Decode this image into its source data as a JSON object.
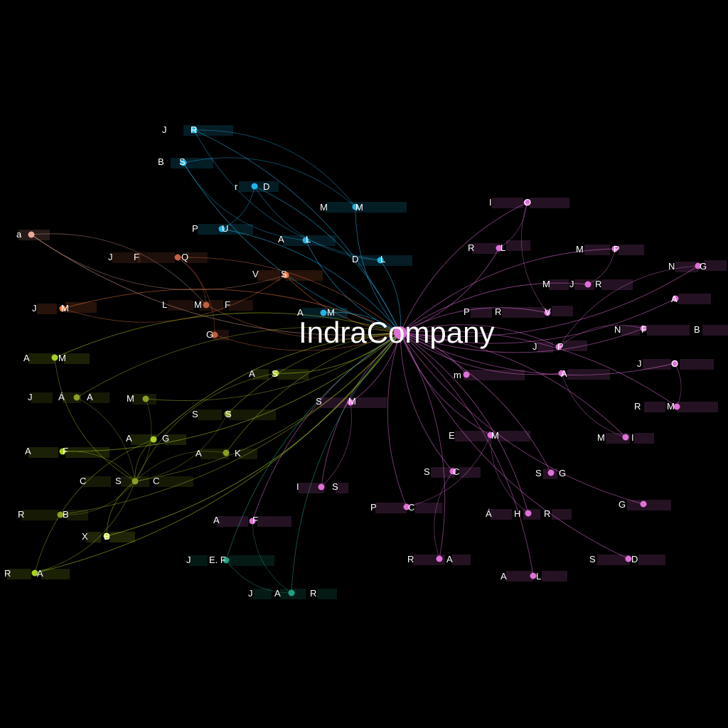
{
  "center": {
    "label": "IndraCompany",
    "color": "#e070d8"
  },
  "nodes": [
    {
      "id": "n1",
      "pieces": [
        "J",
        "R"
      ],
      "color": "#22b4e8"
    },
    {
      "id": "n2",
      "pieces": [
        "B",
        "S"
      ],
      "color": "#22b4e8"
    },
    {
      "id": "n3",
      "pieces": [
        "r",
        "D"
      ],
      "color": "#22b4e8"
    },
    {
      "id": "n4",
      "pieces": [
        "M",
        "M"
      ],
      "color": "#22b4e8"
    },
    {
      "id": "n5",
      "pieces": [
        "P",
        "U"
      ],
      "color": "#22b4e8"
    },
    {
      "id": "n6",
      "pieces": [
        "A",
        "L"
      ],
      "color": "#22b4e8"
    },
    {
      "id": "n7",
      "pieces": [
        "D",
        "L"
      ],
      "color": "#22b4e8"
    },
    {
      "id": "n8",
      "pieces": [
        "a"
      ],
      "color": "#e8a898"
    },
    {
      "id": "n9",
      "pieces": [
        "J",
        "F",
        "Q"
      ],
      "color": "#c06040"
    },
    {
      "id": "n10",
      "pieces": [
        "V",
        "S"
      ],
      "color": "#f07840"
    },
    {
      "id": "n11",
      "pieces": [
        "J",
        "M"
      ],
      "color": "#f07840"
    },
    {
      "id": "n12",
      "pieces": [
        "L",
        "M",
        "F"
      ],
      "color": "#c06040"
    },
    {
      "id": "n13",
      "pieces": [
        "A",
        "M"
      ],
      "color": "#22b4e8"
    },
    {
      "id": "n14",
      "pieces": [
        "G"
      ],
      "color": "#c06040"
    },
    {
      "id": "n15",
      "pieces": [
        "A",
        "M"
      ],
      "color": "#a8d020"
    },
    {
      "id": "n16",
      "pieces": [
        "A",
        "S"
      ],
      "color": "#a8d020"
    },
    {
      "id": "n17",
      "pieces": [
        "J",
        "Á",
        "A"
      ],
      "color": "#8aa020"
    },
    {
      "id": "n18",
      "pieces": [
        "M"
      ],
      "color": "#8aa020"
    },
    {
      "id": "n19",
      "pieces": [
        "S",
        "S"
      ],
      "color": "#8aa020"
    },
    {
      "id": "n20",
      "pieces": [
        "S",
        "M"
      ],
      "color": "#e070d8"
    },
    {
      "id": "n21",
      "pieces": [
        "A",
        "G"
      ],
      "color": "#a8d020"
    },
    {
      "id": "n22",
      "pieces": [
        "A",
        "F"
      ],
      "color": "#a8d020"
    },
    {
      "id": "n23",
      "pieces": [
        "A",
        "K"
      ],
      "color": "#8aa020"
    },
    {
      "id": "n24",
      "pieces": [
        "C",
        "S",
        "C"
      ],
      "color": "#8aa020"
    },
    {
      "id": "n25",
      "pieces": [
        "I",
        "S"
      ],
      "color": "#e070d8"
    },
    {
      "id": "n26",
      "pieces": [
        "R",
        "B"
      ],
      "color": "#8aa020"
    },
    {
      "id": "n27",
      "pieces": [
        "A",
        "F"
      ],
      "color": "#e070d8"
    },
    {
      "id": "n28",
      "pieces": [
        "X",
        "B"
      ],
      "color": "#c8e830"
    },
    {
      "id": "n29",
      "pieces": [
        "J",
        "E. F"
      ],
      "color": "#20a080"
    },
    {
      "id": "n30",
      "pieces": [
        "R",
        "A"
      ],
      "color": "#a8d020"
    },
    {
      "id": "n31",
      "pieces": [
        "J",
        "A",
        "R"
      ],
      "color": "#20a080"
    },
    {
      "id": "n32",
      "pieces": [
        "I",
        "O"
      ],
      "color": "#e070d8"
    },
    {
      "id": "n33",
      "pieces": [
        "R",
        "L"
      ],
      "color": "#e070d8"
    },
    {
      "id": "n34",
      "pieces": [
        "M",
        "P"
      ],
      "color": "#e070d8"
    },
    {
      "id": "n35",
      "pieces": [
        "N",
        "G"
      ],
      "color": "#e070d8"
    },
    {
      "id": "n36",
      "pieces": [
        "M",
        "J",
        "R"
      ],
      "color": "#e070d8"
    },
    {
      "id": "n37",
      "pieces": [
        "A"
      ],
      "color": "#e070d8"
    },
    {
      "id": "n38",
      "pieces": [
        "P",
        "R",
        "V"
      ],
      "color": "#e070d8"
    },
    {
      "id": "n39",
      "pieces": [
        "N",
        "F",
        "B"
      ],
      "color": "#e070d8"
    },
    {
      "id": "n40",
      "pieces": [
        "J",
        "P"
      ],
      "color": "#e070d8"
    },
    {
      "id": "n41",
      "pieces": [
        "J",
        "O"
      ],
      "color": "#e070d8"
    },
    {
      "id": "n42",
      "pieces": [
        "m"
      ],
      "color": "#e070d8"
    },
    {
      "id": "n43",
      "pieces": [
        "A"
      ],
      "color": "#e070d8"
    },
    {
      "id": "n44",
      "pieces": [
        "R",
        "M"
      ],
      "color": "#e070d8"
    },
    {
      "id": "n45",
      "pieces": [
        "E",
        "M"
      ],
      "color": "#e070d8"
    },
    {
      "id": "n46",
      "pieces": [
        "M",
        "I"
      ],
      "color": "#e070d8"
    },
    {
      "id": "n47",
      "pieces": [
        "S",
        "C"
      ],
      "color": "#e070d8"
    },
    {
      "id": "n48",
      "pieces": [
        "S",
        "G"
      ],
      "color": "#e070d8"
    },
    {
      "id": "n49",
      "pieces": [
        "P",
        "C"
      ],
      "color": "#e070d8"
    },
    {
      "id": "n50",
      "pieces": [
        "Á",
        "H",
        "R"
      ],
      "color": "#e070d8"
    },
    {
      "id": "n51",
      "pieces": [
        "G"
      ],
      "color": "#e070d8"
    },
    {
      "id": "n52",
      "pieces": [
        "R",
        "A"
      ],
      "color": "#e070d8"
    },
    {
      "id": "n53",
      "pieces": [
        "S",
        "D"
      ],
      "color": "#e070d8"
    },
    {
      "id": "n54",
      "pieces": [
        "A",
        "L"
      ],
      "color": "#e070d8"
    }
  ],
  "extra_edges": [
    [
      "n1",
      "n4"
    ],
    [
      "n1",
      "n7"
    ],
    [
      "n2",
      "n4"
    ],
    [
      "n2",
      "n6"
    ],
    [
      "n3",
      "n5"
    ],
    [
      "n3",
      "n7"
    ],
    [
      "n8",
      "n12"
    ],
    [
      "n8",
      "n10"
    ],
    [
      "n9",
      "n14"
    ],
    [
      "n11",
      "n10"
    ],
    [
      "n9",
      "n12"
    ],
    [
      "n15",
      "n24"
    ],
    [
      "n17",
      "n24"
    ],
    [
      "n21",
      "n24"
    ],
    [
      "n22",
      "n24"
    ],
    [
      "n26",
      "n24"
    ],
    [
      "n28",
      "n24"
    ],
    [
      "n30",
      "n24"
    ],
    [
      "n19",
      "n24"
    ],
    [
      "n23",
      "n24"
    ],
    [
      "n18",
      "n24"
    ],
    [
      "n16",
      "n24"
    ],
    [
      "n30",
      "n21"
    ],
    [
      "n29",
      "n31"
    ],
    [
      "n31",
      "n27"
    ],
    [
      "n25",
      "n20"
    ],
    [
      "n32",
      "n33"
    ],
    [
      "n32",
      "n38"
    ],
    [
      "n34",
      "n36"
    ],
    [
      "n35",
      "n40"
    ],
    [
      "n41",
      "n44"
    ],
    [
      "n39",
      "n40"
    ],
    [
      "n45",
      "n49"
    ],
    [
      "n47",
      "n52"
    ],
    [
      "n50",
      "n45"
    ],
    [
      "n43",
      "n46"
    ]
  ]
}
